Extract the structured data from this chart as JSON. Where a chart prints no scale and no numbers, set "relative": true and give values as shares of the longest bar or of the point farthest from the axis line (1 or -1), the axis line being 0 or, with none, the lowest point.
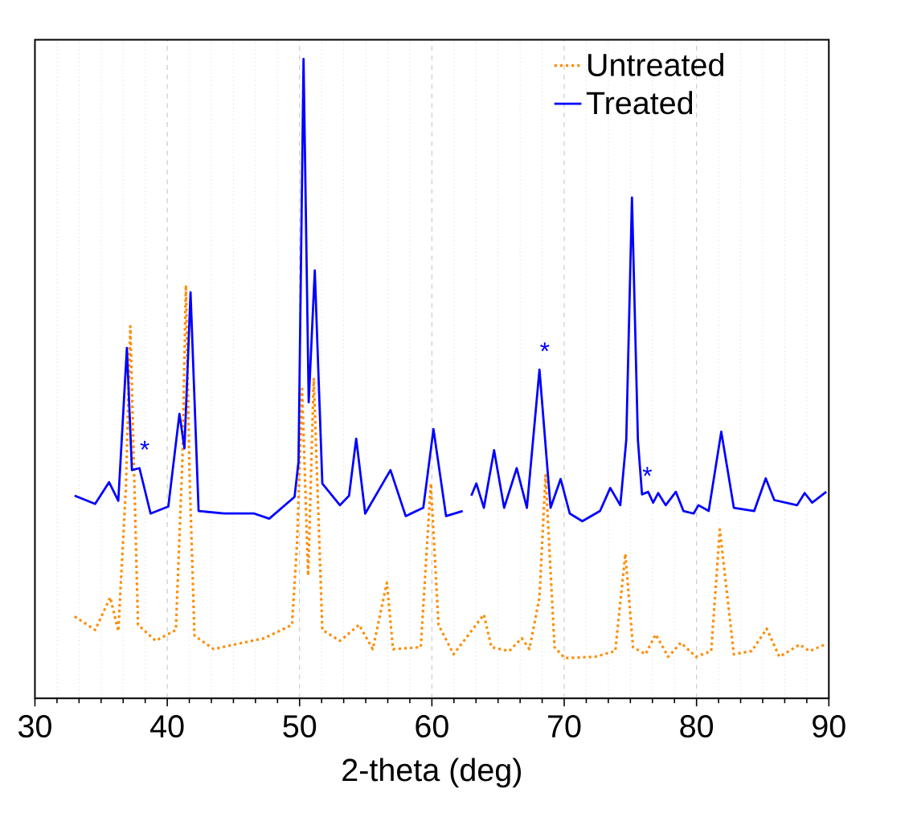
{
  "chart_data": {
    "type": "line",
    "xlabel": "2-theta (deg)",
    "xlim": [
      30,
      90
    ],
    "xticks": [
      30,
      40,
      50,
      60,
      70,
      80,
      90
    ],
    "relative": true,
    "tick_labels": "x",
    "grid": "x",
    "legend": "top right",
    "marker": "none",
    "series": [
      {
        "name": "Untreated",
        "color": "#ff8c00",
        "line_style": "dotted",
        "x": [
          33.0,
          34.55,
          35.69,
          36.3,
          36.87,
          37.21,
          37.79,
          39.12,
          40.65,
          41.14,
          41.41,
          41.68,
          42.06,
          43.51,
          45.04,
          47.33,
          49.43,
          49.81,
          50.19,
          50.65,
          51.07,
          51.72,
          53.05,
          54.5,
          55.53,
          56.6,
          57.06,
          59.16,
          59.92,
          60.5,
          61.64,
          62.79,
          63.93,
          64.5,
          65.84,
          66.79,
          67.37,
          68.13,
          68.59,
          69.27,
          70.04,
          72.33,
          73.86,
          74.62,
          75.2,
          76.15,
          76.91,
          77.86,
          78.82,
          79.96,
          81.11,
          81.76,
          82.82,
          84.17,
          85.31,
          86.26,
          87.79,
          88.55,
          89.69
        ],
        "values": [
          0.128,
          0.107,
          0.158,
          0.105,
          0.327,
          0.582,
          0.115,
          0.09,
          0.107,
          0.37,
          0.646,
          0.353,
          0.098,
          0.077,
          0.084,
          0.094,
          0.115,
          0.243,
          0.484,
          0.192,
          0.501,
          0.107,
          0.09,
          0.115,
          0.077,
          0.181,
          0.077,
          0.08,
          0.336,
          0.115,
          0.069,
          0.1,
          0.131,
          0.08,
          0.074,
          0.094,
          0.077,
          0.158,
          0.349,
          0.08,
          0.063,
          0.065,
          0.074,
          0.226,
          0.08,
          0.069,
          0.1,
          0.065,
          0.087,
          0.065,
          0.074,
          0.264,
          0.069,
          0.074,
          0.109,
          0.065,
          0.084,
          0.074,
          0.084
        ]
      },
      {
        "name": "Treated",
        "color": "#0000ff",
        "line_style": "solid",
        "x": [
          33.0,
          34.55,
          35.6,
          36.3,
          36.95,
          37.33,
          37.9,
          38.74,
          40.08,
          40.92,
          41.3,
          41.76,
          42.37,
          44.28,
          46.57,
          47.71,
          49.62,
          49.92,
          50.3,
          50.69,
          51.15,
          51.72,
          53.05,
          53.74,
          54.28,
          54.96,
          56.87,
          58.02,
          59.35,
          60.12,
          61.07,
          62.33,
          62.6,
          62.98,
          63.36,
          63.93,
          64.7,
          65.46,
          66.41,
          67.18,
          68.13,
          68.97,
          69.73,
          70.42,
          71.37,
          72.71,
          73.48,
          74.24,
          74.69,
          75.12,
          75.57,
          75.88,
          76.34,
          76.72,
          77.1,
          77.67,
          78.44,
          79.01,
          79.78,
          80.15,
          80.92,
          81.87,
          82.82,
          84.36,
          85.23,
          85.88,
          87.6,
          88.17,
          88.74,
          89.81
        ],
        "values": [
          0.317,
          0.304,
          0.338,
          0.309,
          0.548,
          0.357,
          0.36,
          0.289,
          0.3,
          0.445,
          0.391,
          0.635,
          0.293,
          0.289,
          0.289,
          0.281,
          0.315,
          0.37,
          1,
          0.463,
          0.669,
          0.336,
          0.302,
          0.317,
          0.406,
          0.289,
          0.357,
          0.285,
          0.298,
          0.421,
          0.285,
          0.293,
          null,
          0.317,
          0.336,
          0.298,
          0.388,
          0.298,
          0.36,
          0.298,
          0.514,
          0.298,
          0.343,
          0.289,
          0.277,
          0.293,
          0.329,
          0.302,
          0.404,
          0.783,
          0.404,
          0.319,
          0.323,
          0.306,
          0.321,
          0.302,
          0.323,
          0.293,
          0.289,
          0.302,
          0.293,
          0.417,
          0.298,
          0.293,
          0.344,
          0.31,
          0.302,
          0.321,
          0.306,
          0.323
        ]
      }
    ],
    "annotations": [
      {
        "text": "*",
        "x": 37.9,
        "y": 0.36
      },
      {
        "text": "*",
        "x": 68.13,
        "y": 0.514
      },
      {
        "text": "*",
        "x": 75.88,
        "y": 0.319
      }
    ]
  }
}
